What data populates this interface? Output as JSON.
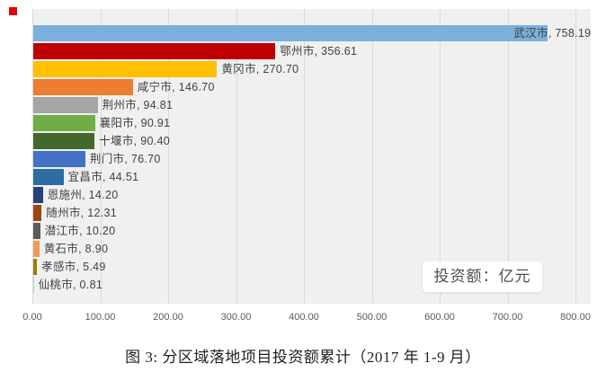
{
  "decorations": {
    "red_marker_color": "#de0505"
  },
  "caption": {
    "text": "图 3: 分区域落地项目投资额累计（2017 年 1-9 月）"
  },
  "chart_data": {
    "type": "bar",
    "orientation": "horizontal",
    "title": "",
    "annotation": "投资额：亿元",
    "categories": [
      "武汉市",
      "鄂州市",
      "黄冈市",
      "咸宁市",
      "荆州市",
      "襄阳市",
      "十堰市",
      "荆门市",
      "宜昌市",
      "恩施州",
      "随州市",
      "潜江市",
      "黄石市",
      "孝感市",
      "仙桃市"
    ],
    "values": [
      758.19,
      356.61,
      270.7,
      146.7,
      94.81,
      90.91,
      90.4,
      76.7,
      44.51,
      14.2,
      12.31,
      10.2,
      8.9,
      5.49,
      0.81
    ],
    "data_labels": [
      "武汉市, 758.19",
      "鄂州市, 356.61",
      "黄冈市, 270.70",
      "咸宁市, 146.70",
      "荆州市, 94.81",
      "襄阳市, 90.91",
      "十堰市, 90.40",
      "荆门市, 76.70",
      "宜昌市, 44.51",
      "恩施州, 14.20",
      "随州市, 12.31",
      "潜江市, 10.20",
      "黄石市, 8.90",
      "孝感市, 5.49",
      "仙桃市, 0.81"
    ],
    "bar_colors": [
      "#7CAFDD",
      "#C00000",
      "#FFC000",
      "#ED7D31",
      "#A5A5A5",
      "#70AD47",
      "#44682B",
      "#4472C4",
      "#2D6DA3",
      "#264478",
      "#9E480E",
      "#5B5B5B",
      "#F1975A",
      "#9E7C00",
      "#C8C8C8"
    ],
    "xlim": [
      0,
      800
    ],
    "x_tick_values": [
      0,
      100,
      200,
      300,
      400,
      500,
      600,
      700,
      800
    ],
    "x_tick_labels": [
      "0.00",
      "100.00",
      "200.00",
      "300.00",
      "400.00",
      "500.00",
      "600.00",
      "700.00",
      "800.00"
    ],
    "grid": true,
    "legend": "none",
    "plot_bg": "#F0F0F0",
    "gridline_color": "#DADADA",
    "data_label_color": "#3F3F3F",
    "tick_color": "#595959"
  }
}
